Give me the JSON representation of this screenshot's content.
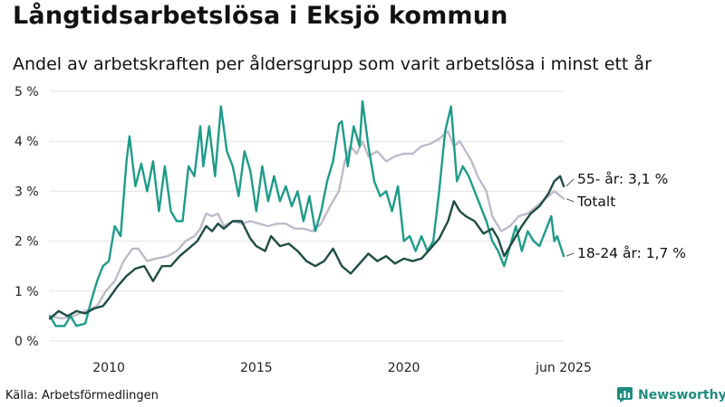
{
  "header": {
    "title": "Långtidsarbetslösa i Eksjö kommun",
    "subtitle": "Andel av arbetskraften per åldersgrupp som varit arbetslösa i minst ett år"
  },
  "footer": {
    "source": "Källa: Arbetsförmedlingen",
    "brand": "Newsworthy"
  },
  "colors": {
    "age55": "#1f4d44",
    "total": "#bdbbc9",
    "age18_24": "#1f9b8a",
    "grid": "#e2e2e2",
    "brand": "#1f8c7f"
  },
  "chart_data": {
    "type": "line",
    "title": "Långtidsarbetslösa i Eksjö kommun",
    "subtitle": "Andel av arbetskraften per åldersgrupp som varit arbetslösa i minst ett år",
    "x_ticks": [
      "2010",
      "2015",
      "2020",
      "jun 2025"
    ],
    "y_ticks": [
      "0 %",
      "1 %",
      "2 %",
      "3 %",
      "4 %",
      "5 %"
    ],
    "ylim": [
      0,
      5
    ],
    "xlim": [
      2008.0,
      2025.42
    ],
    "grid": "horizontal",
    "series": [
      {
        "name": "Totalt",
        "label": "Totalt",
        "color": "#bdbbc9",
        "points": [
          [
            2008.0,
            0.5
          ],
          [
            2008.4,
            0.45
          ],
          [
            2008.8,
            0.5
          ],
          [
            2009.2,
            0.6
          ],
          [
            2009.6,
            0.7
          ],
          [
            2009.9,
            1.0
          ],
          [
            2010.2,
            1.2
          ],
          [
            2010.5,
            1.6
          ],
          [
            2010.8,
            1.85
          ],
          [
            2011.0,
            1.85
          ],
          [
            2011.3,
            1.6
          ],
          [
            2011.6,
            1.65
          ],
          [
            2012.0,
            1.7
          ],
          [
            2012.3,
            1.8
          ],
          [
            2012.6,
            2.0
          ],
          [
            2012.9,
            2.1
          ],
          [
            2013.1,
            2.25
          ],
          [
            2013.3,
            2.55
          ],
          [
            2013.5,
            2.5
          ],
          [
            2013.7,
            2.55
          ],
          [
            2013.9,
            2.3
          ],
          [
            2014.2,
            2.4
          ],
          [
            2014.5,
            2.35
          ],
          [
            2014.8,
            2.4
          ],
          [
            2015.1,
            2.35
          ],
          [
            2015.4,
            2.3
          ],
          [
            2015.7,
            2.35
          ],
          [
            2016.0,
            2.35
          ],
          [
            2016.3,
            2.25
          ],
          [
            2016.6,
            2.25
          ],
          [
            2016.9,
            2.2
          ],
          [
            2017.2,
            2.35
          ],
          [
            2017.5,
            2.7
          ],
          [
            2017.8,
            3.0
          ],
          [
            2018.0,
            3.6
          ],
          [
            2018.2,
            3.9
          ],
          [
            2018.4,
            3.75
          ],
          [
            2018.6,
            4.0
          ],
          [
            2018.8,
            3.7
          ],
          [
            2019.1,
            3.8
          ],
          [
            2019.4,
            3.6
          ],
          [
            2019.7,
            3.7
          ],
          [
            2020.0,
            3.75
          ],
          [
            2020.3,
            3.75
          ],
          [
            2020.6,
            3.9
          ],
          [
            2020.9,
            3.95
          ],
          [
            2021.2,
            4.05
          ],
          [
            2021.5,
            4.2
          ],
          [
            2021.7,
            3.9
          ],
          [
            2021.9,
            4.0
          ],
          [
            2022.1,
            3.8
          ],
          [
            2022.3,
            3.6
          ],
          [
            2022.5,
            3.3
          ],
          [
            2022.8,
            3.0
          ],
          [
            2023.0,
            2.5
          ],
          [
            2023.3,
            2.2
          ],
          [
            2023.6,
            2.3
          ],
          [
            2023.9,
            2.5
          ],
          [
            2024.2,
            2.55
          ],
          [
            2024.5,
            2.7
          ],
          [
            2024.8,
            2.85
          ],
          [
            2025.1,
            3.0
          ],
          [
            2025.42,
            2.85
          ]
        ]
      },
      {
        "name": "55- år",
        "label": "55- år: 3,1 %",
        "color": "#1f4d44",
        "points": [
          [
            2008.0,
            0.45
          ],
          [
            2008.3,
            0.6
          ],
          [
            2008.6,
            0.5
          ],
          [
            2008.9,
            0.6
          ],
          [
            2009.2,
            0.55
          ],
          [
            2009.5,
            0.65
          ],
          [
            2009.8,
            0.7
          ],
          [
            2010.0,
            0.85
          ],
          [
            2010.3,
            1.1
          ],
          [
            2010.6,
            1.3
          ],
          [
            2010.9,
            1.45
          ],
          [
            2011.2,
            1.5
          ],
          [
            2011.5,
            1.2
          ],
          [
            2011.8,
            1.5
          ],
          [
            2012.1,
            1.5
          ],
          [
            2012.4,
            1.7
          ],
          [
            2012.7,
            1.85
          ],
          [
            2013.0,
            2.0
          ],
          [
            2013.3,
            2.3
          ],
          [
            2013.5,
            2.2
          ],
          [
            2013.7,
            2.35
          ],
          [
            2013.9,
            2.25
          ],
          [
            2014.2,
            2.4
          ],
          [
            2014.5,
            2.4
          ],
          [
            2014.8,
            2.05
          ],
          [
            2015.0,
            1.9
          ],
          [
            2015.3,
            1.8
          ],
          [
            2015.5,
            2.1
          ],
          [
            2015.8,
            1.9
          ],
          [
            2016.1,
            1.95
          ],
          [
            2016.4,
            1.8
          ],
          [
            2016.7,
            1.6
          ],
          [
            2017.0,
            1.5
          ],
          [
            2017.3,
            1.6
          ],
          [
            2017.6,
            1.85
          ],
          [
            2017.9,
            1.5
          ],
          [
            2018.2,
            1.35
          ],
          [
            2018.5,
            1.55
          ],
          [
            2018.8,
            1.75
          ],
          [
            2019.1,
            1.6
          ],
          [
            2019.4,
            1.7
          ],
          [
            2019.7,
            1.55
          ],
          [
            2020.0,
            1.65
          ],
          [
            2020.3,
            1.6
          ],
          [
            2020.6,
            1.65
          ],
          [
            2020.9,
            1.85
          ],
          [
            2021.2,
            2.05
          ],
          [
            2021.5,
            2.4
          ],
          [
            2021.7,
            2.8
          ],
          [
            2021.9,
            2.6
          ],
          [
            2022.1,
            2.5
          ],
          [
            2022.4,
            2.4
          ],
          [
            2022.7,
            2.15
          ],
          [
            2023.0,
            2.25
          ],
          [
            2023.2,
            2.05
          ],
          [
            2023.4,
            1.7
          ],
          [
            2023.6,
            1.9
          ],
          [
            2023.8,
            2.1
          ],
          [
            2024.0,
            2.3
          ],
          [
            2024.3,
            2.55
          ],
          [
            2024.6,
            2.7
          ],
          [
            2024.9,
            2.95
          ],
          [
            2025.1,
            3.2
          ],
          [
            2025.3,
            3.3
          ],
          [
            2025.42,
            3.1
          ]
        ]
      },
      {
        "name": "18-24 år",
        "label": "18-24 år: 1,7 %",
        "color": "#1f9b8a",
        "points": [
          [
            2008.0,
            0.5
          ],
          [
            2008.2,
            0.3
          ],
          [
            2008.5,
            0.3
          ],
          [
            2008.7,
            0.5
          ],
          [
            2008.9,
            0.3
          ],
          [
            2009.2,
            0.35
          ],
          [
            2009.4,
            0.8
          ],
          [
            2009.6,
            1.2
          ],
          [
            2009.8,
            1.5
          ],
          [
            2010.0,
            1.6
          ],
          [
            2010.2,
            2.3
          ],
          [
            2010.4,
            2.1
          ],
          [
            2010.6,
            3.6
          ],
          [
            2010.7,
            4.1
          ],
          [
            2010.9,
            3.1
          ],
          [
            2011.1,
            3.55
          ],
          [
            2011.3,
            3.0
          ],
          [
            2011.5,
            3.6
          ],
          [
            2011.7,
            2.6
          ],
          [
            2011.9,
            3.5
          ],
          [
            2012.1,
            2.6
          ],
          [
            2012.3,
            2.4
          ],
          [
            2012.5,
            2.4
          ],
          [
            2012.7,
            3.5
          ],
          [
            2012.9,
            3.3
          ],
          [
            2013.1,
            4.3
          ],
          [
            2013.2,
            3.5
          ],
          [
            2013.4,
            4.3
          ],
          [
            2013.6,
            3.3
          ],
          [
            2013.8,
            4.7
          ],
          [
            2014.0,
            3.8
          ],
          [
            2014.2,
            3.5
          ],
          [
            2014.4,
            2.9
          ],
          [
            2014.6,
            3.8
          ],
          [
            2014.8,
            3.4
          ],
          [
            2015.0,
            2.6
          ],
          [
            2015.2,
            3.5
          ],
          [
            2015.4,
            2.8
          ],
          [
            2015.6,
            3.3
          ],
          [
            2015.8,
            2.8
          ],
          [
            2016.0,
            3.1
          ],
          [
            2016.2,
            2.7
          ],
          [
            2016.4,
            3.0
          ],
          [
            2016.6,
            2.4
          ],
          [
            2016.8,
            2.9
          ],
          [
            2017.0,
            2.2
          ],
          [
            2017.2,
            2.6
          ],
          [
            2017.4,
            3.2
          ],
          [
            2017.6,
            3.6
          ],
          [
            2017.8,
            4.35
          ],
          [
            2017.9,
            4.4
          ],
          [
            2018.1,
            3.5
          ],
          [
            2018.3,
            4.3
          ],
          [
            2018.5,
            3.9
          ],
          [
            2018.6,
            4.8
          ],
          [
            2018.8,
            3.9
          ],
          [
            2019.0,
            3.2
          ],
          [
            2019.2,
            2.9
          ],
          [
            2019.4,
            3.0
          ],
          [
            2019.6,
            2.6
          ],
          [
            2019.8,
            3.1
          ],
          [
            2020.0,
            2.0
          ],
          [
            2020.2,
            2.1
          ],
          [
            2020.4,
            1.8
          ],
          [
            2020.6,
            2.1
          ],
          [
            2020.8,
            1.8
          ],
          [
            2021.0,
            2.0
          ],
          [
            2021.2,
            3.0
          ],
          [
            2021.4,
            4.2
          ],
          [
            2021.6,
            4.7
          ],
          [
            2021.8,
            3.2
          ],
          [
            2022.0,
            3.5
          ],
          [
            2022.2,
            3.3
          ],
          [
            2022.4,
            3.0
          ],
          [
            2022.6,
            2.7
          ],
          [
            2022.8,
            2.4
          ],
          [
            2023.0,
            2.0
          ],
          [
            2023.2,
            1.8
          ],
          [
            2023.4,
            1.5
          ],
          [
            2023.6,
            1.9
          ],
          [
            2023.8,
            2.3
          ],
          [
            2024.0,
            1.8
          ],
          [
            2024.2,
            2.2
          ],
          [
            2024.4,
            2.0
          ],
          [
            2024.6,
            1.9
          ],
          [
            2024.8,
            2.2
          ],
          [
            2025.0,
            2.5
          ],
          [
            2025.1,
            2.0
          ],
          [
            2025.2,
            2.1
          ],
          [
            2025.42,
            1.7
          ]
        ]
      }
    ]
  }
}
